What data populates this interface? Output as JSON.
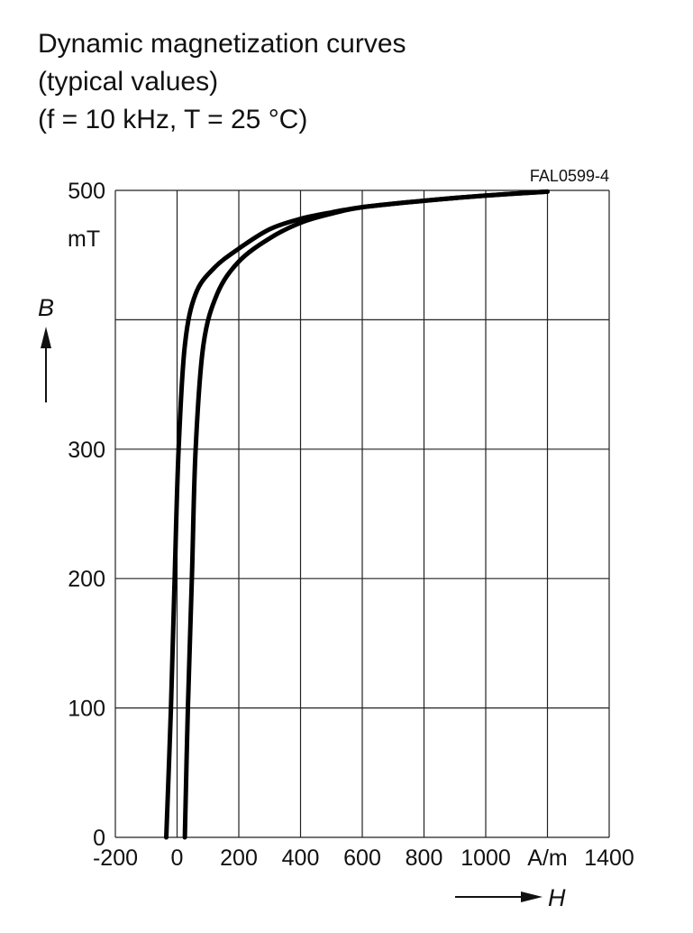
{
  "title_lines": [
    "Dynamic magnetization curves",
    "(typical values)",
    "(f = 10 kHz, T = 25 °C)"
  ],
  "figure_code": "FAL0599-4",
  "chart_data": {
    "type": "line",
    "xlabel": "H",
    "xunit": "A/m",
    "ylabel": "B",
    "yunit": "mT",
    "xlim": [
      -200,
      1400
    ],
    "ylim": [
      0,
      500
    ],
    "x_ticks": [
      -200,
      0,
      200,
      400,
      600,
      800,
      1000,
      1200,
      1400
    ],
    "x_tick_labels": [
      "-200",
      "0",
      "200",
      "400",
      "600",
      "800",
      "1000",
      "A/m",
      "1400"
    ],
    "y_ticks": [
      0,
      100,
      200,
      300,
      500
    ],
    "y_tick_labels": [
      "0",
      "100",
      "200",
      "300",
      "500"
    ],
    "y_gridlines": [
      0,
      100,
      200,
      300,
      400,
      500
    ],
    "x_gridlines": [
      -200,
      0,
      200,
      400,
      600,
      800,
      1000,
      1200,
      1400
    ],
    "grid": true,
    "series": [
      {
        "values": [
          [
            -35,
            0
          ],
          [
            -20,
            100
          ],
          [
            -8,
            200
          ],
          [
            5,
            300
          ],
          [
            25,
            380
          ],
          [
            60,
            420
          ],
          [
            120,
            440
          ],
          [
            200,
            455
          ],
          [
            300,
            470
          ],
          [
            400,
            478
          ],
          [
            500,
            483
          ],
          [
            600,
            487
          ],
          [
            800,
            492
          ],
          [
            1000,
            496
          ],
          [
            1200,
            499
          ]
        ]
      },
      {
        "values": [
          [
            25,
            0
          ],
          [
            35,
            100
          ],
          [
            48,
            200
          ],
          [
            60,
            300
          ],
          [
            85,
            380
          ],
          [
            130,
            420
          ],
          [
            200,
            445
          ],
          [
            300,
            463
          ],
          [
            400,
            475
          ],
          [
            500,
            482
          ],
          [
            600,
            487
          ],
          [
            800,
            492
          ],
          [
            1000,
            496
          ],
          [
            1200,
            499
          ]
        ]
      }
    ]
  }
}
